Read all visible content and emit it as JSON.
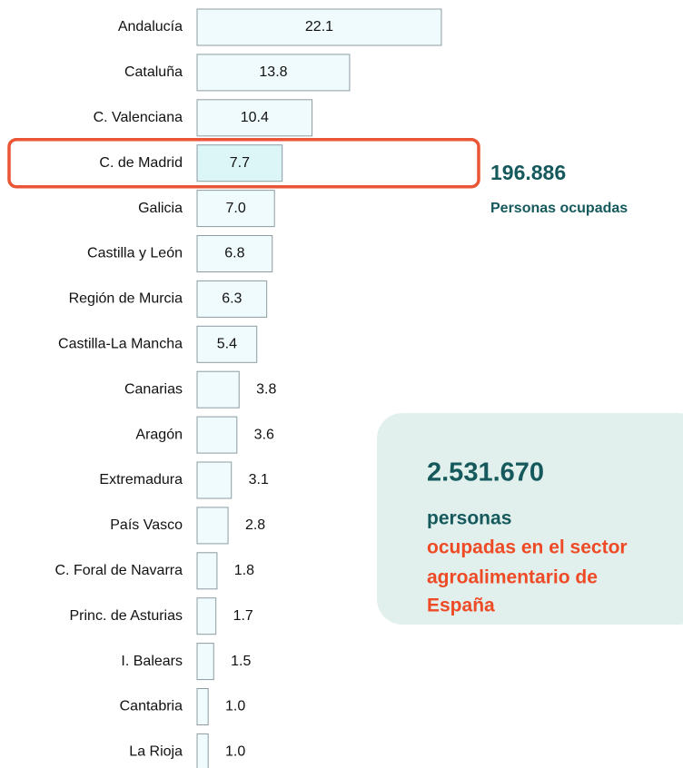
{
  "chart_data": {
    "type": "bar",
    "orientation": "horizontal",
    "categories": [
      "Andalucía",
      "Cataluña",
      "C. Valenciana",
      "C. de Madrid",
      "Galicia",
      "Castilla y León",
      "Región de Murcia",
      "Castilla-La Mancha",
      "Canarias",
      "Aragón",
      "Extremadura",
      "País Vasco",
      "C. Foral de Navarra",
      "Princ. de Asturias",
      "I. Balears",
      "Cantabria",
      "La Rioja"
    ],
    "values": [
      22.1,
      13.8,
      10.4,
      7.7,
      7.0,
      6.8,
      6.3,
      5.4,
      3.8,
      3.6,
      3.1,
      2.8,
      1.8,
      1.7,
      1.5,
      1.0,
      1.0
    ],
    "value_labels": [
      "22.1",
      "13.8",
      "10.4",
      "7.7",
      "7.0",
      "6.8",
      "6.3",
      "5.4",
      "3.8",
      "3.6",
      "3.1",
      "2.8",
      "1.8",
      "1.7",
      "1.5",
      "1.0",
      "1.0"
    ],
    "color": "#f0fbfd",
    "highlight": "C. de Madrid",
    "highlight_color": "#dcf6f8",
    "callout": {
      "value": "196.886",
      "label": "Personas ocupadas"
    },
    "summary": {
      "value": "2.531.670",
      "label": "personas",
      "lines": [
        "ocupadas en el sector",
        "agroalimentario de",
        "España"
      ]
    }
  }
}
